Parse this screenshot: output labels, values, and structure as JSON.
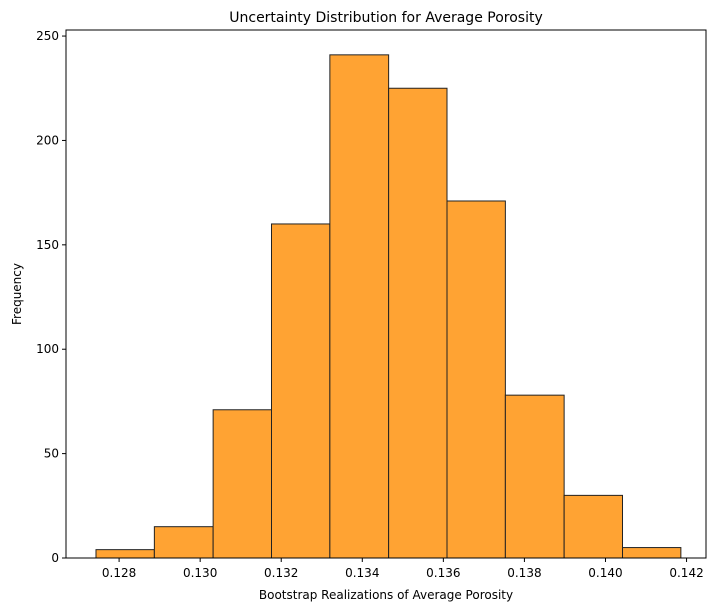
{
  "chart_data": {
    "type": "bar",
    "subtype": "histogram",
    "title": "Uncertainty Distribution for Average Porosity",
    "xlabel": "Bootstrap Realizations of Average Porosity",
    "ylabel": "Frequency",
    "bin_edges": [
      0.12743,
      0.12887,
      0.13032,
      0.13176,
      0.1332,
      0.13465,
      0.13609,
      0.13753,
      0.13898,
      0.14042,
      0.14186
    ],
    "values": [
      4,
      15,
      71,
      160,
      241,
      225,
      171,
      78,
      30,
      5
    ],
    "xlim": [
      0.12669,
      0.14248
    ],
    "ylim": [
      0,
      252.9
    ],
    "xticks": [
      0.128,
      0.13,
      0.132,
      0.134,
      0.136,
      0.138,
      0.14,
      0.142
    ],
    "xtick_labels": [
      "0.128",
      "0.130",
      "0.132",
      "0.134",
      "0.136",
      "0.138",
      "0.140",
      "0.142"
    ],
    "yticks": [
      0,
      50,
      100,
      150,
      200,
      250
    ],
    "ytick_labels": [
      "0",
      "50",
      "100",
      "150",
      "200",
      "250"
    ],
    "bar_color": "#ffa333",
    "edge_color": "#222222",
    "grid": false
  }
}
